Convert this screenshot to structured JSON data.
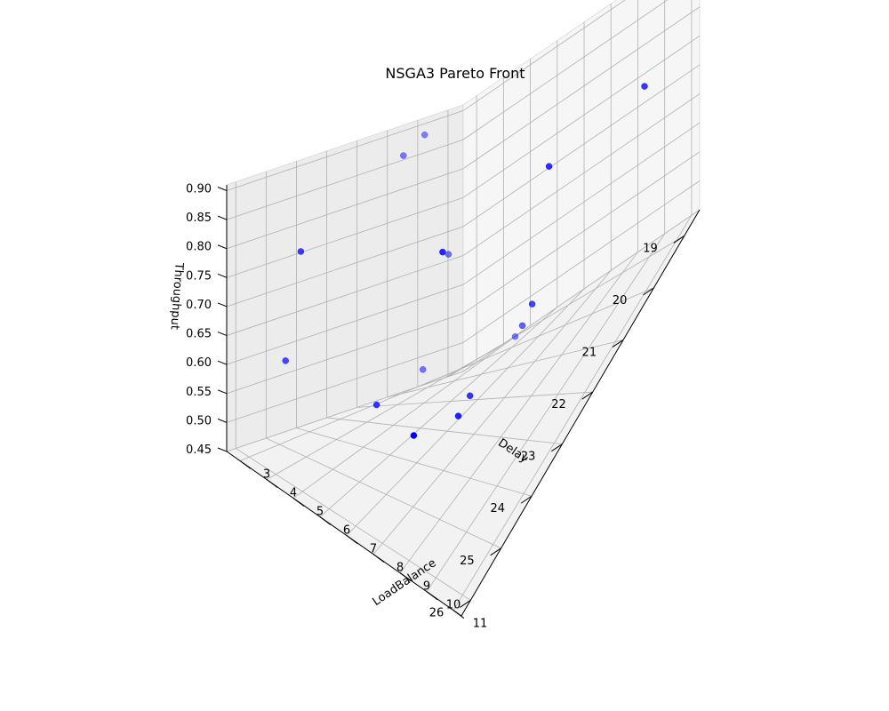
{
  "chart_data": {
    "type": "scatter",
    "title": "NSGA3 Pareto Front",
    "xlabel": "LoadBalance",
    "ylabel": "Delay",
    "zlabel": "Throughput",
    "xlim": [
      2.5,
      11.3
    ],
    "ylim": [
      18.5,
      26.3
    ],
    "zlim": [
      0.45,
      0.91
    ],
    "xticks": [
      3,
      4,
      5,
      6,
      7,
      8,
      9,
      10,
      11
    ],
    "yticks": [
      19,
      20,
      21,
      22,
      23,
      24,
      25,
      26
    ],
    "zticks": [
      "0.45",
      "0.50",
      "0.55",
      "0.60",
      "0.65",
      "0.70",
      "0.75",
      "0.80",
      "0.85",
      "0.90"
    ],
    "grid": true,
    "marker_color": "#0000ff",
    "points": [
      {
        "x": 8.6,
        "y": 25.5,
        "z": 0.62
      },
      {
        "x": 3.0,
        "y": 24.8,
        "z": 0.59
      },
      {
        "x": 3.1,
        "y": 20.3,
        "z": 0.88
      },
      {
        "x": 3.1,
        "y": 21.0,
        "z": 0.86
      },
      {
        "x": 5.0,
        "y": 19.0,
        "z": 0.45
      },
      {
        "x": 7.4,
        "y": 23.5,
        "z": 0.79
      },
      {
        "x": 3.8,
        "y": 25.0,
        "z": 0.8
      },
      {
        "x": 9.1,
        "y": 21.5,
        "z": 0.81
      },
      {
        "x": 10.5,
        "y": 19.6,
        "z": 0.78
      },
      {
        "x": 8.1,
        "y": 23.6,
        "z": 0.52
      },
      {
        "x": 7.4,
        "y": 22.6,
        "z": 0.49
      },
      {
        "x": 5.5,
        "y": 24.0,
        "z": 0.53
      },
      {
        "x": 7.9,
        "y": 21.0,
        "z": 0.55
      },
      {
        "x": 6.4,
        "y": 20.0,
        "z": 0.48
      },
      {
        "x": 4.1,
        "y": 20.4,
        "z": 0.66
      },
      {
        "x": 3.6,
        "y": 20.8,
        "z": 0.48
      }
    ]
  }
}
